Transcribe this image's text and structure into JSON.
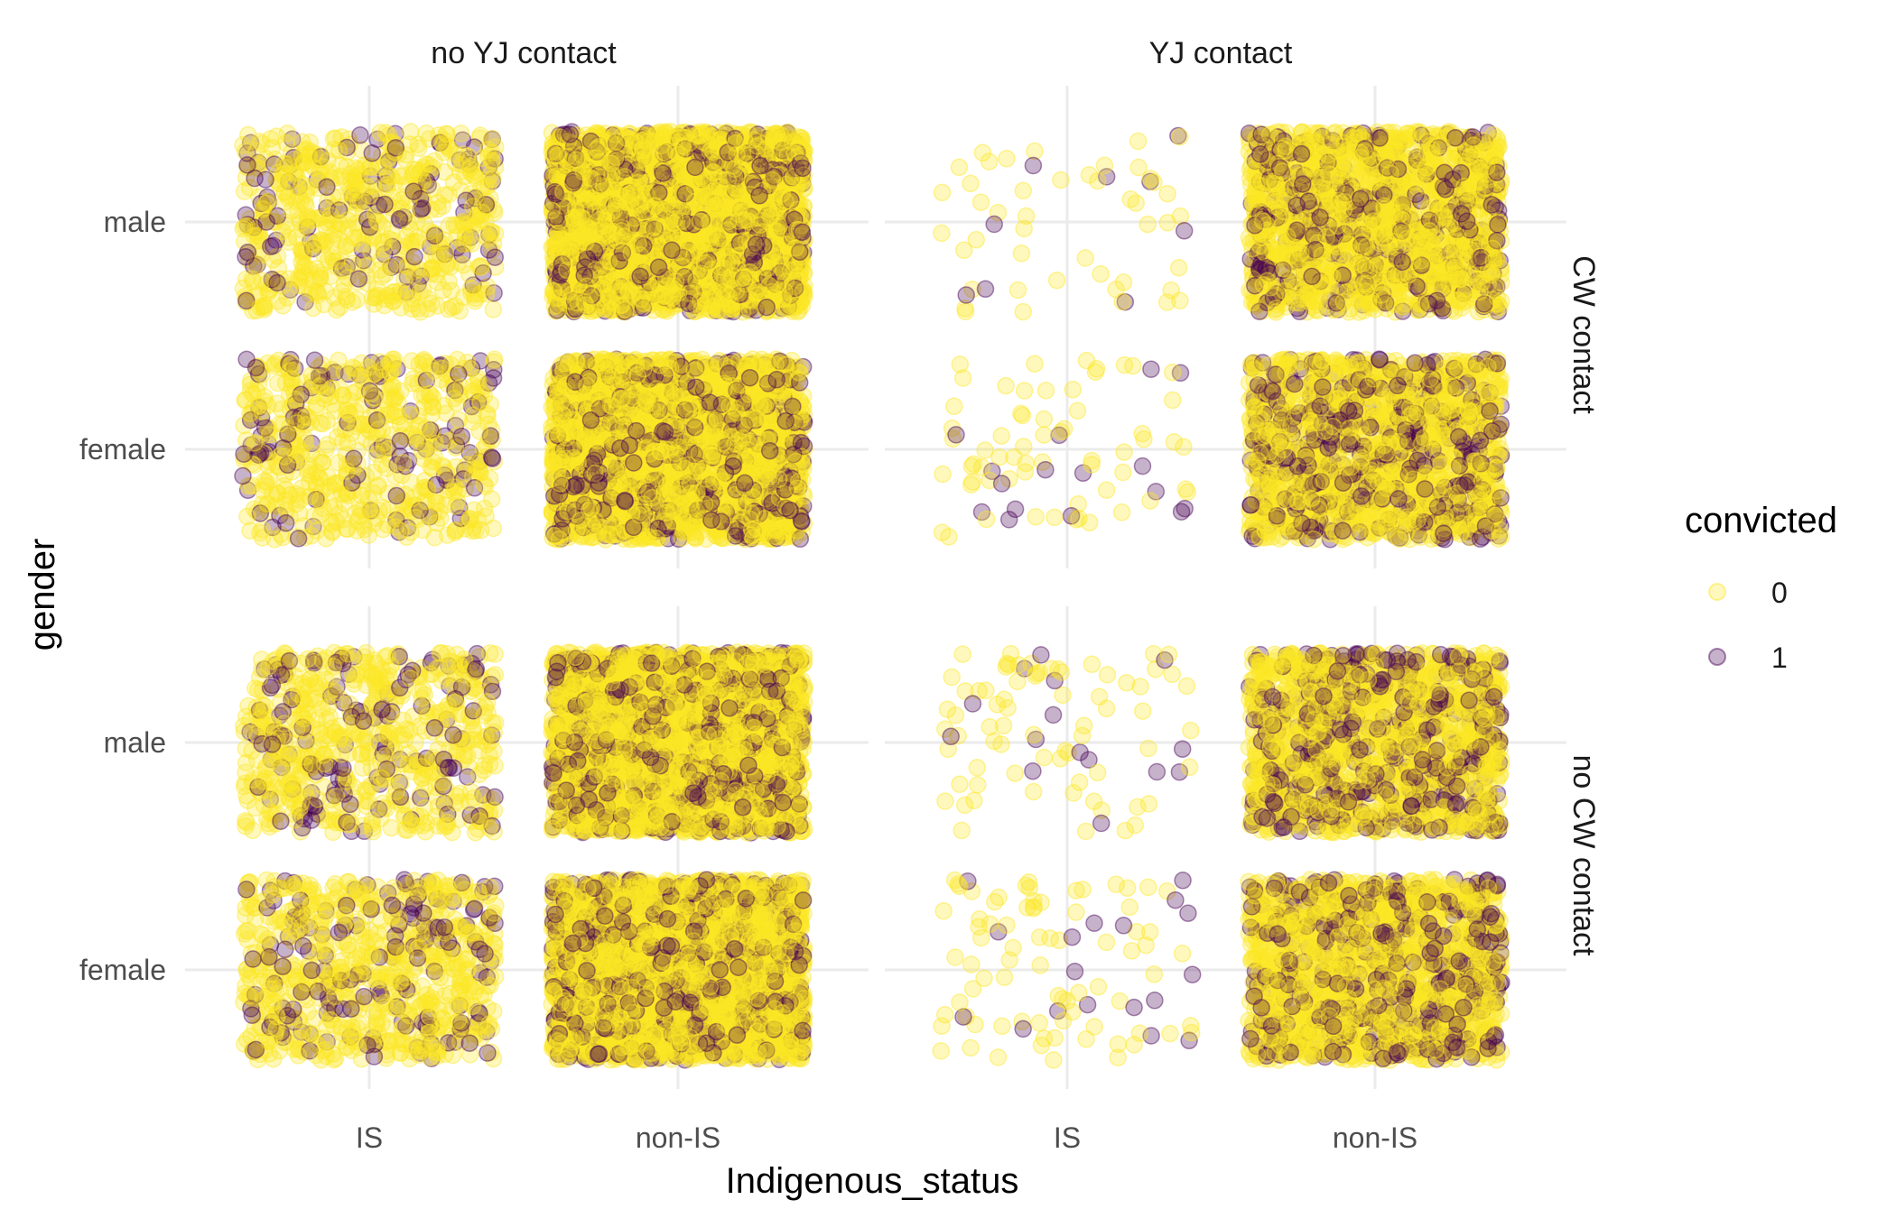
{
  "chart_data": {
    "type": "scatter",
    "jitter": true,
    "facets": {
      "columns": [
        "no YJ contact",
        "YJ contact"
      ],
      "rows": [
        "CW contact",
        "no CW contact"
      ]
    },
    "x": {
      "label": "Indigenous_status",
      "categories": [
        "IS",
        "non-IS"
      ]
    },
    "y": {
      "label": "gender",
      "categories": [
        "female",
        "male"
      ]
    },
    "legend": {
      "title": "convicted",
      "position": "right",
      "entries": [
        {
          "label": "0",
          "color": "#FDE725"
        },
        {
          "label": "1",
          "color": "#440154"
        }
      ]
    },
    "grid": true,
    "point_alpha": 0.3,
    "panels": [
      {
        "col": "no YJ contact",
        "row": "CW contact",
        "cells": [
          {
            "x": "IS",
            "y": "male",
            "n_0": 560,
            "n_1": 110
          },
          {
            "x": "non-IS",
            "y": "male",
            "n_0": 2600,
            "n_1": 600
          },
          {
            "x": "IS",
            "y": "female",
            "n_0": 520,
            "n_1": 110
          },
          {
            "x": "non-IS",
            "y": "female",
            "n_0": 2200,
            "n_1": 520
          }
        ]
      },
      {
        "col": "YJ contact",
        "row": "CW contact",
        "cells": [
          {
            "x": "IS",
            "y": "male",
            "n_0": 46,
            "n_1": 9
          },
          {
            "x": "non-IS",
            "y": "male",
            "n_0": 1500,
            "n_1": 380
          },
          {
            "x": "IS",
            "y": "female",
            "n_0": 62,
            "n_1": 16
          },
          {
            "x": "non-IS",
            "y": "female",
            "n_0": 1300,
            "n_1": 420
          }
        ]
      },
      {
        "col": "no YJ contact",
        "row": "no CW contact",
        "cells": [
          {
            "x": "IS",
            "y": "male",
            "n_0": 560,
            "n_1": 130
          },
          {
            "x": "non-IS",
            "y": "male",
            "n_0": 2400,
            "n_1": 560
          },
          {
            "x": "IS",
            "y": "female",
            "n_0": 640,
            "n_1": 150
          },
          {
            "x": "non-IS",
            "y": "female",
            "n_0": 2500,
            "n_1": 620
          }
        ]
      },
      {
        "col": "YJ contact",
        "row": "no CW contact",
        "cells": [
          {
            "x": "IS",
            "y": "male",
            "n_0": 72,
            "n_1": 15
          },
          {
            "x": "non-IS",
            "y": "male",
            "n_0": 1250,
            "n_1": 420
          },
          {
            "x": "IS",
            "y": "female",
            "n_0": 78,
            "n_1": 18
          },
          {
            "x": "non-IS",
            "y": "female",
            "n_0": 1350,
            "n_1": 400
          }
        ]
      }
    ]
  }
}
